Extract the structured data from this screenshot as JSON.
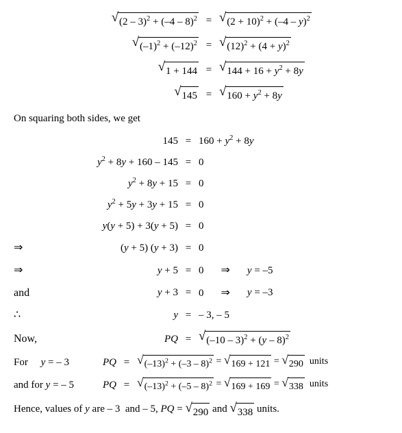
{
  "block1": [
    {
      "lhs_w": 220,
      "lhs": "(2 – 3)<sup>2</sup> + (–4 – 8)<sup>2</sup>",
      "lhs_sqrt": true,
      "rhs": "(2 + 10)<sup>2</sup> + (–4 – <span class='ital'>y</span>)<sup>2</sup>",
      "rhs_sqrt": true
    },
    {
      "lhs_w": 220,
      "lhs": "(–1)<sup>2</sup> + (–12)<sup>2</sup>",
      "lhs_sqrt": true,
      "rhs": "(12)<sup>2</sup> + (4 + <span class='ital'>y</span>)<sup>2</sup>",
      "rhs_sqrt": true
    },
    {
      "lhs_w": 220,
      "lhs": "1 + 144",
      "lhs_sqrt": true,
      "rhs": "144 + 16 + <span class='ital'>y</span><sup>2</sup> + 8<span class='ital'>y</span>",
      "rhs_sqrt": true
    },
    {
      "lhs_w": 220,
      "lhs": "145",
      "lhs_sqrt": true,
      "rhs": "160 + <span class='ital'>y</span><sup>2</sup> + 8<span class='ital'>y</span>",
      "rhs_sqrt": true
    }
  ],
  "text1": "On squaring both sides, we get",
  "block2": [
    {
      "lead": "",
      "lhs_w": 190,
      "lhs": "145",
      "rhs": "160 + <span class='ital'>y</span><sup>2</sup> + 8<span class='ital'>y</span>"
    },
    {
      "lead": "",
      "lhs_w": 190,
      "lhs": "<span class='ital'>y</span><sup>2</sup> + 8<span class='ital'>y</span> + 160 – 145",
      "rhs": "0"
    },
    {
      "lead": "",
      "lhs_w": 190,
      "lhs": "<span class='ital'>y</span><sup>2</sup> + 8<span class='ital'>y</span> + 15",
      "rhs": "0"
    },
    {
      "lead": "",
      "lhs_w": 190,
      "lhs": "<span class='ital'>y</span><sup>2</sup> + 5<span class='ital'>y</span> + 3<span class='ital'>y</span> + 15",
      "rhs": "0"
    },
    {
      "lead": "",
      "lhs_w": 190,
      "lhs": "<span class='ital'>y</span>(<span class='ital'>y</span> + 5) + 3(<span class='ital'>y</span> + 5)",
      "rhs": "0"
    },
    {
      "lead": "⇒",
      "lhs_w": 190,
      "lhs": "(<span class='ital'>y</span> + 5) (<span class='ital'>y</span> + 3)",
      "rhs": "0"
    },
    {
      "lead": "⇒",
      "lhs_w": 190,
      "lhs": "<span class='ital'>y</span> + 5",
      "rhs": "0",
      "tail_arrow": "⇒",
      "tail": "<span class='ital'>y</span> = –5"
    },
    {
      "lead": "and",
      "lhs_w": 190,
      "lhs": "<span class='ital'>y</span> + 3",
      "rhs": "0",
      "tail_arrow": "⇒",
      "tail": "<span class='ital'>y</span> = –3"
    },
    {
      "lead": "∴",
      "lhs_w": 190,
      "lhs": "<span class='ital'>y</span>",
      "rhs": "– 3, – 5"
    }
  ],
  "now": {
    "lead": "Now,",
    "lhs": "<span class='ital'>PQ</span>",
    "rhs_sqrt": "(–10 – 3)<sup>2</sup> + (<span class='ital'>y</span> – 8)<sup>2</sup>"
  },
  "for1": {
    "lead": "For&nbsp;&nbsp;&nbsp;&nbsp;&nbsp;<span class='ital'>y</span> = – 3",
    "lhs": "<span class='ital'>PQ</span>",
    "parts": [
      {
        "sqrt": "(–13)<sup>2</sup> + (–3 – 8)<sup>2</sup>"
      },
      {
        "sqrt": "169 + 121"
      },
      {
        "sqrt": "290"
      }
    ],
    "unit": "units"
  },
  "for2": {
    "lead": "and for <span class='ital'>y</span> = – 5",
    "lhs": "<span class='ital'>PQ</span>",
    "parts": [
      {
        "sqrt": "(–13)<sup>2</sup> + (–5 – 8)<sup>2</sup>"
      },
      {
        "sqrt": "169 + 169"
      },
      {
        "sqrt": "338"
      }
    ],
    "unit": "units"
  },
  "final": {
    "pre": "Hence, values of <span class='ital'>y</span> are – 3&nbsp; and – 5, <span class='ital'>PQ</span> = ",
    "s1": "290",
    "mid": " and ",
    "s2": "338",
    "post": " units."
  }
}
